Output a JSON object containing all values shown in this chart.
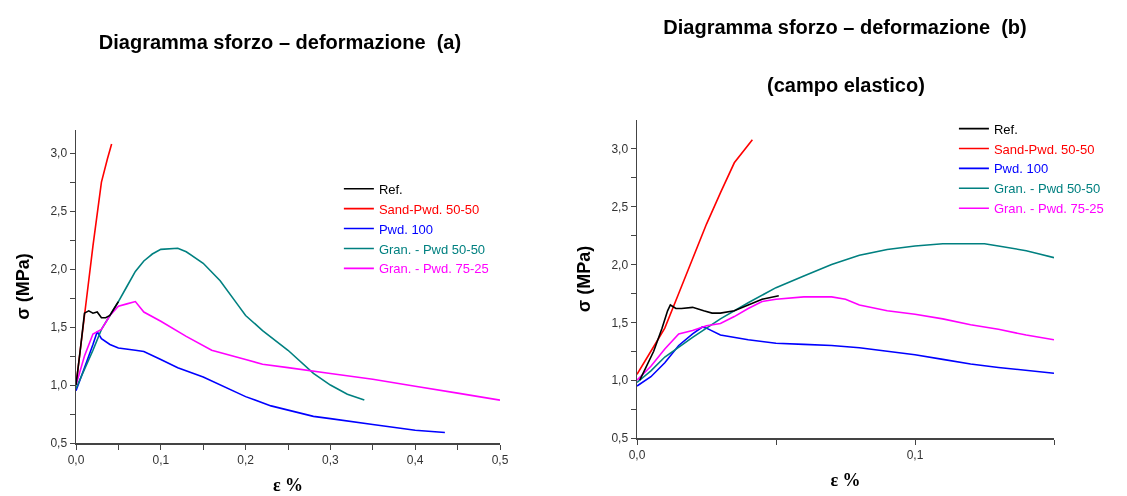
{
  "chart_data": [
    {
      "type": "line",
      "title": "Diagramma sforzo – deformazione  (a)",
      "xlabel": "ε %",
      "ylabel": "σ (MPa)",
      "xlim": [
        0,
        0.5
      ],
      "ylim": [
        0.5,
        3.2
      ],
      "xticks": [
        {
          "value": 0,
          "label": "0,0"
        },
        {
          "value": 0.05,
          "label": null
        },
        {
          "value": 0.1,
          "label": "0,1"
        },
        {
          "value": 0.15,
          "label": null
        },
        {
          "value": 0.2,
          "label": "0,2"
        },
        {
          "value": 0.25,
          "label": null
        },
        {
          "value": 0.3,
          "label": "0,3"
        },
        {
          "value": 0.35,
          "label": null
        },
        {
          "value": 0.4,
          "label": "0,4"
        },
        {
          "value": 0.45,
          "label": null
        },
        {
          "value": 0.5,
          "label": "0,5"
        }
      ],
      "yticks": [
        {
          "value": 0.5,
          "label": "0,5"
        },
        {
          "value": 0.75,
          "label": null
        },
        {
          "value": 1,
          "label": "1,0"
        },
        {
          "value": 1.25,
          "label": null
        },
        {
          "value": 1.5,
          "label": "1,5"
        },
        {
          "value": 1.75,
          "label": null
        },
        {
          "value": 2,
          "label": "2,0"
        },
        {
          "value": 2.25,
          "label": null
        },
        {
          "value": 2.5,
          "label": "2,5"
        },
        {
          "value": 2.75,
          "label": null
        },
        {
          "value": 3,
          "label": "3,0"
        }
      ],
      "grid": false,
      "legend": "top right",
      "marker": "none",
      "line_style": "solid",
      "series": [
        {
          "name": "Ref.",
          "color": "#000000",
          "x": [
            0,
            0.005,
            0.01,
            0.015,
            0.02,
            0.025,
            0.03,
            0.035,
            0.04,
            0.045,
            0.05
          ],
          "values": [
            1.0,
            1.3,
            1.62,
            1.64,
            1.62,
            1.63,
            1.58,
            1.58,
            1.6,
            1.66,
            1.72
          ]
        },
        {
          "name": "Sand-Pwd. 50-50",
          "color": "#ff0000",
          "x": [
            0,
            0.01,
            0.02,
            0.03,
            0.037,
            0.042
          ],
          "values": [
            1.0,
            1.6,
            2.2,
            2.75,
            2.95,
            3.08
          ]
        },
        {
          "name": "Pwd. 100",
          "color": "#0000ff",
          "x": [
            0,
            0.01,
            0.02,
            0.025,
            0.03,
            0.04,
            0.05,
            0.07,
            0.08,
            0.1,
            0.12,
            0.15,
            0.2,
            0.23,
            0.28,
            0.3,
            0.35,
            0.4,
            0.435
          ],
          "values": [
            0.95,
            1.15,
            1.35,
            1.46,
            1.4,
            1.35,
            1.32,
            1.3,
            1.29,
            1.22,
            1.15,
            1.07,
            0.9,
            0.82,
            0.73,
            0.71,
            0.66,
            0.61,
            0.59
          ]
        },
        {
          "name": "Gran. - Pwd 50-50",
          "color": "#008080",
          "x": [
            0,
            0.02,
            0.03,
            0.04,
            0.05,
            0.06,
            0.07,
            0.08,
            0.09,
            0.1,
            0.12,
            0.13,
            0.15,
            0.17,
            0.19,
            0.2,
            0.22,
            0.25,
            0.28,
            0.3,
            0.32,
            0.34
          ],
          "values": [
            0.97,
            1.3,
            1.48,
            1.6,
            1.72,
            1.85,
            1.98,
            2.07,
            2.13,
            2.17,
            2.18,
            2.15,
            2.05,
            1.9,
            1.7,
            1.6,
            1.47,
            1.3,
            1.1,
            1.0,
            0.92,
            0.87
          ]
        },
        {
          "name": "Gran. - Pwd. 75-25",
          "color": "#ff00ff",
          "x": [
            0,
            0.01,
            0.02,
            0.03,
            0.04,
            0.05,
            0.06,
            0.07,
            0.08,
            0.1,
            0.13,
            0.16,
            0.2,
            0.22,
            0.25,
            0.3,
            0.35,
            0.4,
            0.45,
            0.5
          ],
          "values": [
            1.0,
            1.25,
            1.44,
            1.48,
            1.6,
            1.68,
            1.7,
            1.72,
            1.63,
            1.55,
            1.42,
            1.3,
            1.22,
            1.18,
            1.15,
            1.1,
            1.05,
            0.99,
            0.93,
            0.87
          ]
        }
      ]
    },
    {
      "type": "line",
      "title": "Diagramma sforzo – deformazione  (b)",
      "subtitle": "(campo elastico)",
      "xlabel": "ε %",
      "ylabel": "σ (MPa)",
      "xlim": [
        0,
        0.15
      ],
      "ylim": [
        0.5,
        3.25
      ],
      "xticks": [
        {
          "value": 0,
          "label": "0,0"
        },
        {
          "value": 0.05,
          "label": null
        },
        {
          "value": 0.1,
          "label": "0,1"
        },
        {
          "value": 0.15,
          "label": null
        }
      ],
      "yticks": [
        {
          "value": 0.5,
          "label": "0,5"
        },
        {
          "value": 0.75,
          "label": null
        },
        {
          "value": 1,
          "label": "1,0"
        },
        {
          "value": 1.25,
          "label": null
        },
        {
          "value": 1.5,
          "label": "1,5"
        },
        {
          "value": 1.75,
          "label": null
        },
        {
          "value": 2,
          "label": "2,0"
        },
        {
          "value": 2.25,
          "label": null
        },
        {
          "value": 2.5,
          "label": "2,5"
        },
        {
          "value": 2.75,
          "label": null
        },
        {
          "value": 3,
          "label": "3,0"
        }
      ],
      "grid": false,
      "legend": "top right",
      "marker": "none",
      "line_style": "solid",
      "series": [
        {
          "name": "Ref.",
          "color": "#000000",
          "x": [
            0.001,
            0.003,
            0.006,
            0.009,
            0.011,
            0.012,
            0.014,
            0.016,
            0.02,
            0.024,
            0.027,
            0.03,
            0.035,
            0.04,
            0.045,
            0.051
          ],
          "values": [
            1.0,
            1.1,
            1.25,
            1.45,
            1.6,
            1.65,
            1.62,
            1.62,
            1.63,
            1.6,
            1.58,
            1.58,
            1.6,
            1.65,
            1.7,
            1.73
          ]
        },
        {
          "name": "Sand-Pwd. 50-50",
          "color": "#ff0000",
          "x": [
            0,
            0.005,
            0.01,
            0.015,
            0.02,
            0.025,
            0.03,
            0.035,
            0.0415
          ],
          "values": [
            1.05,
            1.25,
            1.45,
            1.75,
            2.05,
            2.35,
            2.62,
            2.88,
            3.08
          ]
        },
        {
          "name": "Pwd. 100",
          "color": "#0000ff",
          "x": [
            0,
            0.005,
            0.01,
            0.015,
            0.02,
            0.0235,
            0.025,
            0.03,
            0.04,
            0.05,
            0.06,
            0.07,
            0.08,
            0.09,
            0.1,
            0.11,
            0.12,
            0.13,
            0.15
          ],
          "values": [
            0.95,
            1.03,
            1.15,
            1.3,
            1.4,
            1.46,
            1.45,
            1.39,
            1.35,
            1.32,
            1.31,
            1.3,
            1.28,
            1.25,
            1.22,
            1.18,
            1.14,
            1.11,
            1.06
          ]
        },
        {
          "name": "Gran. - Pwd 50-50",
          "color": "#008080",
          "x": [
            0,
            0.005,
            0.01,
            0.02,
            0.025,
            0.03,
            0.04,
            0.05,
            0.06,
            0.07,
            0.08,
            0.09,
            0.1,
            0.11,
            0.125,
            0.13,
            0.14,
            0.15
          ],
          "values": [
            0.98,
            1.08,
            1.2,
            1.37,
            1.45,
            1.53,
            1.67,
            1.8,
            1.9,
            2.0,
            2.08,
            2.13,
            2.16,
            2.18,
            2.18,
            2.16,
            2.12,
            2.06
          ]
        },
        {
          "name": "Gran. - Pwd. 75-25",
          "color": "#ff00ff",
          "x": [
            0,
            0.005,
            0.01,
            0.015,
            0.02,
            0.025,
            0.03,
            0.035,
            0.04,
            0.045,
            0.05,
            0.06,
            0.07,
            0.075,
            0.08,
            0.09,
            0.1,
            0.11,
            0.12,
            0.13,
            0.14,
            0.15
          ],
          "values": [
            1.0,
            1.12,
            1.27,
            1.4,
            1.43,
            1.47,
            1.49,
            1.55,
            1.62,
            1.68,
            1.7,
            1.72,
            1.72,
            1.7,
            1.65,
            1.6,
            1.57,
            1.53,
            1.48,
            1.44,
            1.39,
            1.35
          ]
        }
      ]
    }
  ]
}
